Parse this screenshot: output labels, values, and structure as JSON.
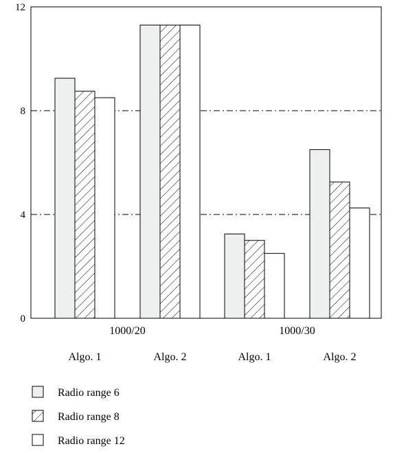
{
  "chart_data": {
    "type": "bar",
    "ylim": [
      0,
      12
    ],
    "yticks": [
      0,
      4,
      8,
      12
    ],
    "grid": "dash-dot at 4 and 8",
    "groups": [
      {
        "label": "1000/20",
        "subgroups": [
          {
            "label": "Algo. 1",
            "values": [
              9.25,
              8.75,
              8.5
            ]
          },
          {
            "label": "Algo. 2",
            "values": [
              11.3,
              11.3,
              11.3
            ]
          }
        ]
      },
      {
        "label": "1000/30",
        "subgroups": [
          {
            "label": "Algo. 1",
            "values": [
              3.25,
              3.0,
              2.5
            ]
          },
          {
            "label": "Algo. 2",
            "values": [
              6.5,
              5.25,
              4.25
            ]
          }
        ]
      }
    ],
    "series": [
      {
        "name": "Radio range 6",
        "style": "light-fill",
        "color": "#eef0ef"
      },
      {
        "name": "Radio range 8",
        "style": "hatched",
        "color": "#000000"
      },
      {
        "name": "Radio range 12",
        "style": "white",
        "color": "#ffffff"
      }
    ],
    "legend": "bottom-left"
  }
}
